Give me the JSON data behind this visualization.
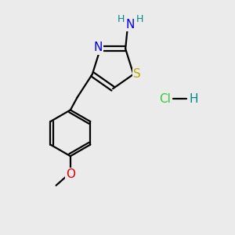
{
  "background_color": "#ebebeb",
  "atom_colors": {
    "C": "#000000",
    "N": "#0000ee",
    "S": "#bbaa00",
    "O": "#dd0000",
    "H": "#008888",
    "Cl": "#33cc33"
  },
  "figsize": [
    3.0,
    3.0
  ],
  "dpi": 100
}
